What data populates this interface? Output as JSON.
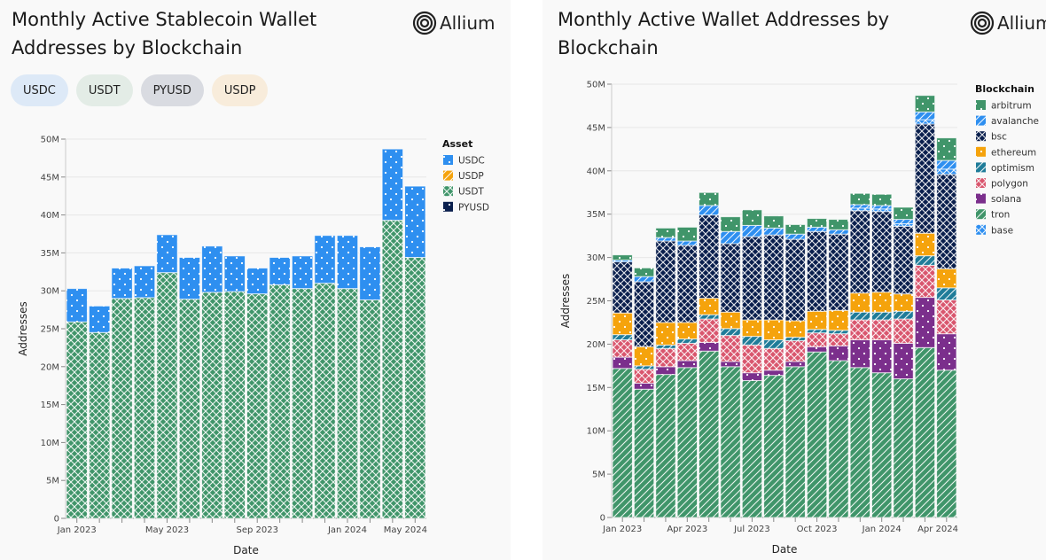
{
  "left": {
    "title_line1": "Monthly Active Stablecoin Wallet",
    "title_line2": "Addresses by Blockchain",
    "logo_text": "Allium",
    "chips": [
      {
        "label": "USDC",
        "color": "#dde9f7"
      },
      {
        "label": "USDT",
        "color": "#e3ece6"
      },
      {
        "label": "PYUSD",
        "color": "#d9dbe1"
      },
      {
        "label": "USDP",
        "color": "#f8ecdb"
      }
    ]
  },
  "right": {
    "title_line1": "Monthly Active Wallet Addresses by",
    "title_line2": "Blockchain",
    "logo_text": "Allium"
  },
  "chart_data": [
    {
      "type": "bar",
      "stacked": true,
      "title": "Monthly Active Stablecoin Wallet Addresses by Blockchain",
      "xlabel": "Date",
      "ylabel": "Addresses",
      "ylim": [
        0,
        50000000
      ],
      "yticks": [
        "0",
        "5M",
        "10M",
        "15M",
        "20M",
        "25M",
        "30M",
        "35M",
        "40M",
        "45M",
        "50M"
      ],
      "xtick_labels": [
        {
          "index": 0,
          "label": "Jan 2023"
        },
        {
          "index": 4,
          "label": "May 2023"
        },
        {
          "index": 8,
          "label": "Sep 2023"
        },
        {
          "index": 12,
          "label": "Jan 2024"
        },
        {
          "index": 15.5,
          "label": "May 2024"
        }
      ],
      "grid": true,
      "legend_title": "Asset",
      "legend_position": "top-right",
      "legend": [
        {
          "name": "USDC",
          "color": "#2e8ff0",
          "pattern": "dots"
        },
        {
          "name": "USDP",
          "color": "#f5a30c",
          "pattern": "diagonal"
        },
        {
          "name": "USDT",
          "color": "#40956a",
          "pattern": "crosshatch"
        },
        {
          "name": "PYUSD",
          "color": "#0a1f4d",
          "pattern": "dots"
        }
      ],
      "categories": [
        "2023-01",
        "2023-02",
        "2023-03",
        "2023-04",
        "2023-05",
        "2023-06",
        "2023-07",
        "2023-08",
        "2023-09",
        "2023-10",
        "2023-11",
        "2023-12",
        "2024-01",
        "2024-02",
        "2024-03",
        "2024-04"
      ],
      "series": [
        {
          "name": "USDT",
          "values": [
            25.9,
            24.5,
            29.0,
            29.1,
            32.4,
            28.9,
            29.8,
            29.9,
            29.6,
            30.8,
            30.3,
            31.0,
            30.3,
            28.8,
            39.3,
            34.4
          ],
          "unit": "M"
        },
        {
          "name": "USDC",
          "values": [
            4.4,
            3.5,
            4.0,
            4.2,
            5.0,
            5.5,
            6.1,
            4.7,
            3.4,
            3.6,
            4.3,
            6.3,
            7.0,
            7.0,
            9.4,
            9.4
          ],
          "unit": "M"
        },
        {
          "name": "USDP",
          "values": [
            0,
            0,
            0,
            0,
            0,
            0,
            0,
            0,
            0,
            0,
            0,
            0,
            0,
            0,
            0,
            0
          ],
          "unit": "M"
        },
        {
          "name": "PYUSD",
          "values": [
            0,
            0,
            0,
            0,
            0,
            0,
            0,
            0,
            0,
            0,
            0,
            0,
            0,
            0,
            0,
            0
          ],
          "unit": "M"
        }
      ]
    },
    {
      "type": "bar",
      "stacked": true,
      "title": "Monthly Active Wallet Addresses by Blockchain",
      "xlabel": "Date",
      "ylabel": "Addresses",
      "ylim": [
        0,
        50000000
      ],
      "yticks": [
        "0",
        "5M",
        "10M",
        "15M",
        "20M",
        "25M",
        "30M",
        "35M",
        "40M",
        "45M",
        "50M"
      ],
      "xtick_labels": [
        {
          "index": 0,
          "label": "Jan 2023"
        },
        {
          "index": 3,
          "label": "Apr 2023"
        },
        {
          "index": 6,
          "label": "Jul 2023"
        },
        {
          "index": 9,
          "label": "Oct 2023"
        },
        {
          "index": 12,
          "label": "Jan 2024"
        },
        {
          "index": 15,
          "label": "Apr 2024"
        }
      ],
      "grid": true,
      "legend_title": "Blockchain",
      "legend_position": "top-right",
      "legend": [
        {
          "name": "arbitrum",
          "color": "#40956a",
          "pattern": "dots"
        },
        {
          "name": "avalanche",
          "color": "#2e8ff0",
          "pattern": "diagonal"
        },
        {
          "name": "bsc",
          "color": "#0a1f4d",
          "pattern": "crosshatch"
        },
        {
          "name": "ethereum",
          "color": "#f5a30c",
          "pattern": "dots"
        },
        {
          "name": "optimism",
          "color": "#1f7c99",
          "pattern": "diagonal"
        },
        {
          "name": "polygon",
          "color": "#d9566e",
          "pattern": "crosshatch"
        },
        {
          "name": "solana",
          "color": "#7b2f8c",
          "pattern": "dots"
        },
        {
          "name": "tron",
          "color": "#40956a",
          "pattern": "diagonal"
        },
        {
          "name": "base",
          "color": "#2e8ff0",
          "pattern": "crosshatch"
        }
      ],
      "categories": [
        "2023-01",
        "2023-02",
        "2023-03",
        "2023-04",
        "2023-05",
        "2023-06",
        "2023-07",
        "2023-08",
        "2023-09",
        "2023-10",
        "2023-11",
        "2023-12",
        "2024-01",
        "2024-02",
        "2024-03",
        "2024-04"
      ],
      "series": [
        {
          "name": "tron",
          "values": [
            17.2,
            14.8,
            16.5,
            17.3,
            19.2,
            17.4,
            15.8,
            16.4,
            17.4,
            19.1,
            18.1,
            17.3,
            16.7,
            16.0,
            19.6,
            17.0
          ],
          "unit": "M"
        },
        {
          "name": "solana",
          "values": [
            1.3,
            0.7,
            0.9,
            0.8,
            1.0,
            0.6,
            0.9,
            0.6,
            0.6,
            0.6,
            1.7,
            3.2,
            3.8,
            4.1,
            5.8,
            4.2
          ],
          "unit": "M"
        },
        {
          "name": "polygon",
          "values": [
            2.0,
            1.6,
            2.1,
            2.0,
            2.7,
            3.0,
            3.2,
            2.5,
            2.4,
            1.6,
            1.4,
            2.3,
            2.3,
            2.8,
            3.7,
            3.9
          ],
          "unit": "M"
        },
        {
          "name": "optimism",
          "values": [
            0.6,
            0.4,
            0.4,
            0.5,
            0.5,
            0.8,
            1.0,
            1.0,
            0.4,
            0.4,
            0.4,
            0.9,
            0.9,
            0.9,
            1.1,
            1.4
          ],
          "unit": "M"
        },
        {
          "name": "ethereum",
          "values": [
            2.5,
            2.2,
            2.6,
            1.9,
            1.9,
            1.9,
            1.9,
            2.3,
            1.9,
            2.1,
            2.3,
            2.2,
            2.3,
            2.0,
            2.6,
            2.2
          ],
          "unit": "M"
        },
        {
          "name": "bsc",
          "values": [
            5.9,
            7.5,
            9.4,
            8.9,
            9.6,
            7.9,
            9.6,
            9.8,
            9.4,
            9.2,
            8.8,
            9.5,
            9.3,
            7.8,
            12.6,
            10.9
          ],
          "unit": "M"
        },
        {
          "name": "base",
          "values": [
            0,
            0,
            0,
            0,
            0,
            0,
            0,
            0,
            0,
            0,
            0,
            0.3,
            0.3,
            0.3,
            0.5,
            0.6
          ],
          "unit": "M"
        },
        {
          "name": "avalanche",
          "values": [
            0.2,
            0.6,
            0.4,
            0.5,
            1.1,
            1.4,
            1.3,
            0.8,
            0.6,
            0.5,
            0.5,
            0.4,
            0.4,
            0.5,
            0.9,
            1.0
          ],
          "unit": "M"
        },
        {
          "name": "arbitrum",
          "values": [
            0.6,
            1.0,
            1.1,
            1.6,
            1.5,
            1.7,
            1.8,
            1.4,
            1.1,
            1.0,
            1.2,
            1.3,
            1.3,
            1.4,
            1.9,
            2.6
          ],
          "unit": "M"
        }
      ]
    }
  ]
}
